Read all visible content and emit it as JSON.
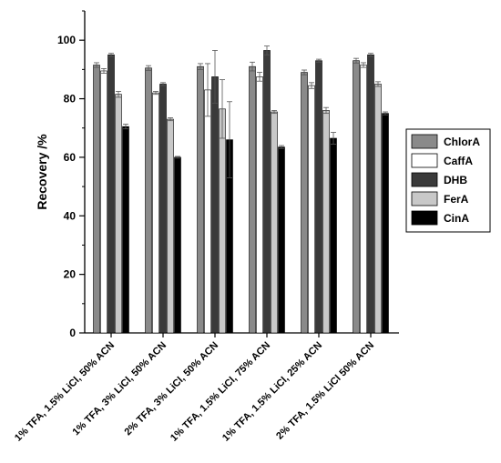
{
  "chart_data": {
    "type": "bar",
    "title": "",
    "xlabel": "",
    "ylabel": "Recovery /%",
    "ylim": [
      0,
      110
    ],
    "yticks": [
      0,
      20,
      40,
      60,
      80,
      100
    ],
    "grid": false,
    "legend_position": "right",
    "categories": [
      "1% TFA, 1.5% LiCl, 50% ACN",
      "1% TFA, 3% LiCl, 50% ACN",
      "2% TFA, 3% LiCl, 50% ACN",
      "1% TFA, 1.5% LiCl, 75% ACN",
      "1% TFA, 1.5% LiCl, 25% ACN",
      "2% TFA, 1.5% LiCl 50% ACN"
    ],
    "series": [
      {
        "name": "ChlorA",
        "color": "#8a8a8a",
        "values": [
          91.5,
          90.5,
          91.0,
          91.0,
          89.0,
          93.0
        ],
        "errors": [
          0.8,
          0.8,
          1.0,
          1.5,
          0.8,
          0.8
        ]
      },
      {
        "name": "CaffA",
        "color": "#ffffff",
        "values": [
          89.5,
          82.0,
          83.0,
          87.5,
          84.5,
          91.5
        ],
        "errors": [
          0.8,
          0.5,
          9.0,
          1.5,
          1.0,
          0.8
        ]
      },
      {
        "name": "DHB",
        "color": "#3a3a3a",
        "values": [
          95.0,
          85.0,
          87.5,
          96.5,
          93.0,
          95.0
        ],
        "errors": [
          0.5,
          0.5,
          9.0,
          1.5,
          0.5,
          0.5
        ]
      },
      {
        "name": "FerA",
        "color": "#c8c8c8",
        "values": [
          81.5,
          73.0,
          76.5,
          75.5,
          76.0,
          85.0
        ],
        "errors": [
          1.0,
          0.5,
          10.0,
          0.5,
          1.0,
          0.8
        ]
      },
      {
        "name": "CinA",
        "color": "#000000",
        "values": [
          70.5,
          60.0,
          66.0,
          63.5,
          66.5,
          75.0
        ],
        "errors": [
          0.8,
          0.3,
          13.0,
          0.5,
          2.0,
          0.5
        ]
      }
    ]
  }
}
